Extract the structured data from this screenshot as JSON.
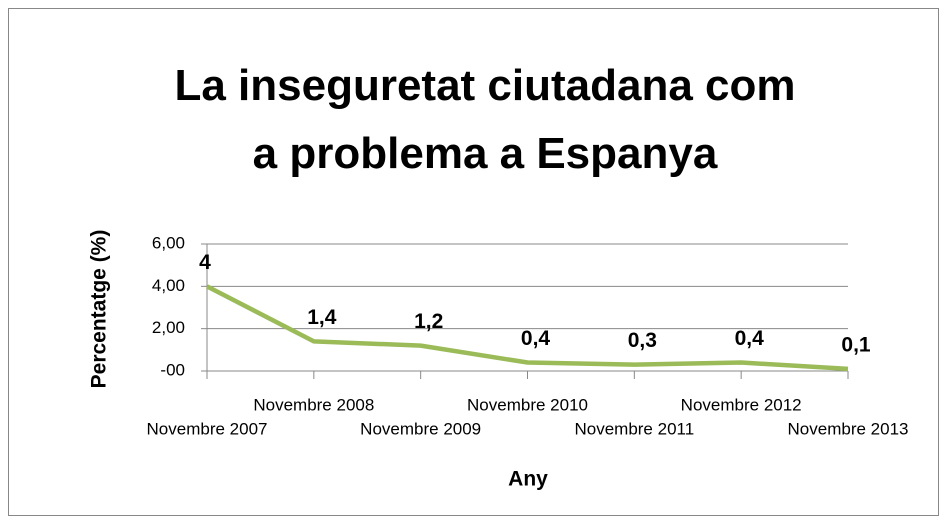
{
  "chart_data": {
    "type": "line",
    "title": "La inseguretat ciutadana com a problema a Espanya",
    "x_label": "Any",
    "y_label": "Percentatge (%)",
    "categories": [
      "Novembre 2007",
      "Novembre 2008",
      "Novembre 2009",
      "Novembre 2010",
      "Novembre 2011",
      "Novembre 2012",
      "Novembre 2013"
    ],
    "values": [
      4,
      1.4,
      1.2,
      0.4,
      0.3,
      0.4,
      0.1
    ],
    "value_labels": [
      "4",
      "1,4",
      "1,2",
      "0,4",
      "0,3",
      "0,4",
      "0,1"
    ],
    "color": "#9bbb59",
    "ylim": [
      0,
      6
    ],
    "yticks": [
      {
        "value": 0,
        "label": "-00"
      },
      {
        "value": 2,
        "label": "2,00"
      },
      {
        "value": 4,
        "label": "4,00"
      },
      {
        "value": 6,
        "label": "6,00"
      }
    ],
    "grid": true
  }
}
